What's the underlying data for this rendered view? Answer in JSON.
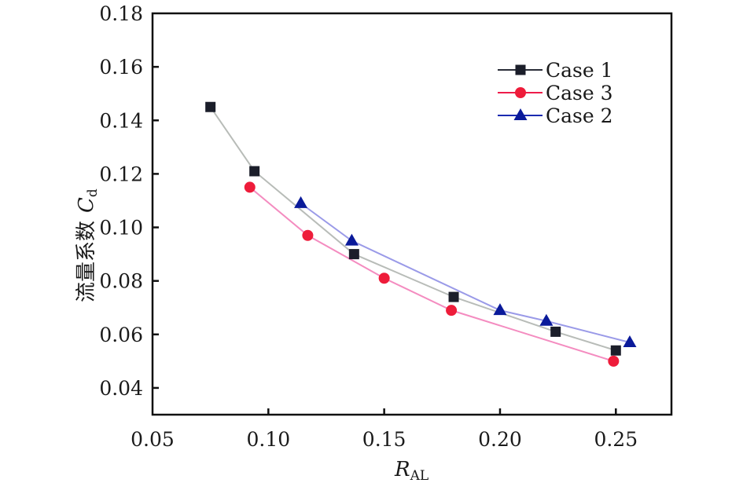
{
  "chart_data": {
    "type": "line",
    "title": "",
    "xlabel": "R",
    "xlabel_subscript": "AL",
    "ylabel_prefix": "流量系数",
    "ylabel": "C",
    "ylabel_subscript": "d",
    "xlim": [
      0.05,
      0.274
    ],
    "ylim": [
      0.03,
      0.18
    ],
    "xticks": [
      0.05,
      0.1,
      0.15,
      0.2,
      0.25
    ],
    "xtick_labels": [
      "0.05",
      "0.10",
      "0.15",
      "0.20",
      "0.25"
    ],
    "yticks": [
      0.04,
      0.06,
      0.08,
      0.1,
      0.12,
      0.14,
      0.16,
      0.18
    ],
    "ytick_labels": [
      "0.04",
      "0.06",
      "0.08",
      "0.10",
      "0.12",
      "0.14",
      "0.16",
      "0.18"
    ],
    "grid": false,
    "legend_position": "top-right",
    "series": [
      {
        "name": "Case 1",
        "marker": "square",
        "line_color": "#b8bcb8",
        "marker_color": "#1b1e2a",
        "legend_line_color": "#2a2d38",
        "x": [
          0.075,
          0.094,
          0.137,
          0.18,
          0.224,
          0.25
        ],
        "y": [
          0.145,
          0.121,
          0.09,
          0.074,
          0.061,
          0.054
        ]
      },
      {
        "name": "Case 3",
        "marker": "circle",
        "line_color": "#f48cc0",
        "marker_color": "#ee1c3a",
        "legend_line_color": "#ee1c4a",
        "x": [
          0.092,
          0.117,
          0.15,
          0.179,
          0.249
        ],
        "y": [
          0.115,
          0.097,
          0.081,
          0.069,
          0.05
        ]
      },
      {
        "name": "Case 2",
        "marker": "triangle",
        "line_color": "#9a9ae8",
        "marker_color": "#0a1a9a",
        "legend_line_color": "#1a2ab0",
        "x": [
          0.114,
          0.136,
          0.2,
          0.22,
          0.256
        ],
        "y": [
          0.109,
          0.095,
          0.069,
          0.065,
          0.057
        ]
      }
    ]
  }
}
